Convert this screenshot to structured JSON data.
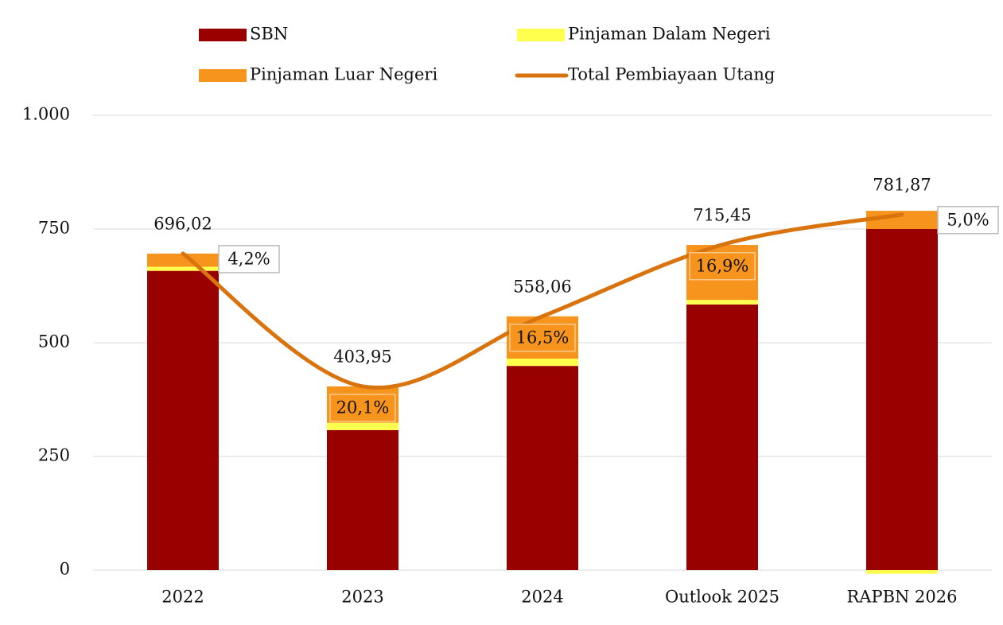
{
  "chart_data": {
    "type": "bar",
    "stacked": true,
    "categories": [
      "2022",
      "2023",
      "2024",
      "Outlook 2025",
      "RAPBN 2026"
    ],
    "series": [
      {
        "name": "SBN",
        "color": "#990000",
        "values": [
          658,
          308,
          449,
          584,
          750
        ]
      },
      {
        "name": "Pinjaman Dalam Negeri",
        "color": "#ffff4d",
        "values": [
          9,
          16,
          16,
          10,
          -8
        ]
      },
      {
        "name": "Pinjaman Luar Negeri",
        "color": "#f7941d",
        "values": [
          29,
          80,
          93,
          121,
          40
        ]
      },
      {
        "name": "Total Pembiayaan Utang",
        "type": "line",
        "color": "#d9730d",
        "values": [
          696.02,
          403.95,
          558.06,
          715.45,
          781.87
        ],
        "value_labels": [
          "696,02",
          "403,95",
          "558,06",
          "715,45",
          "781,87"
        ]
      }
    ],
    "annotations": [
      "4,2%",
      "20,1%",
      "16,5%",
      "16,9%",
      "5,0%"
    ],
    "ylim": [
      0,
      1000
    ],
    "yticks": [
      0,
      250,
      500,
      750,
      {
        "value": 1000,
        "label": "1.000"
      }
    ],
    "grid": true,
    "legend": "top"
  }
}
